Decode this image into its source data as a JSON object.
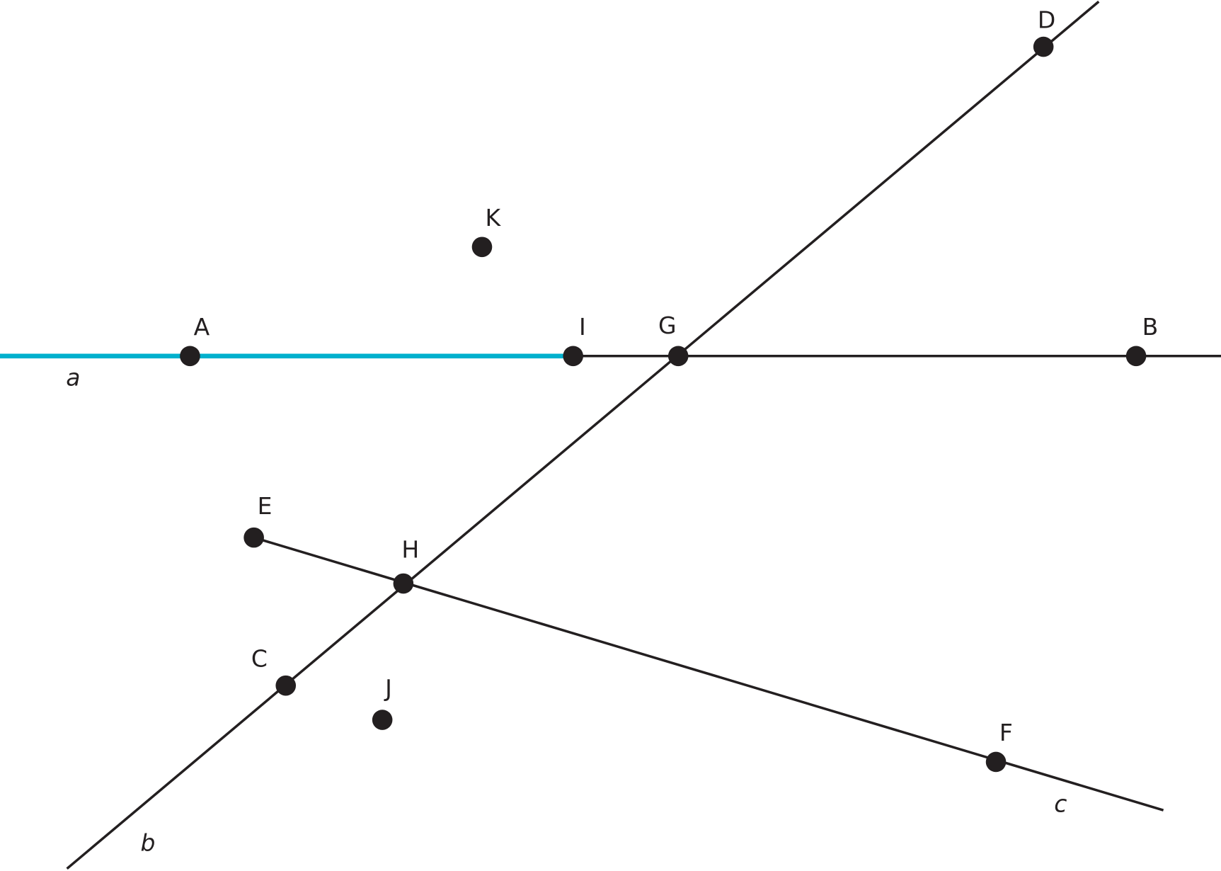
{
  "diagram": {
    "colors": {
      "highlight": "#00b0cd",
      "ink": "#231f20"
    },
    "lines": [
      {
        "name": "a",
        "label": "a",
        "through": [
          "A",
          "I",
          "G",
          "B"
        ],
        "highlighted_ray": "from I through A"
      },
      {
        "name": "b",
        "label": "b",
        "through": [
          "C",
          "H",
          "G",
          "D"
        ]
      },
      {
        "name": "c",
        "label": "c",
        "through": [
          "E",
          "H",
          "F"
        ],
        "starts_at": "E"
      }
    ],
    "points": {
      "A": "A",
      "B": "B",
      "C": "C",
      "D": "D",
      "E": "E",
      "F": "F",
      "G": "G",
      "H": "H",
      "I": "I",
      "J": "J",
      "K": "K"
    }
  }
}
